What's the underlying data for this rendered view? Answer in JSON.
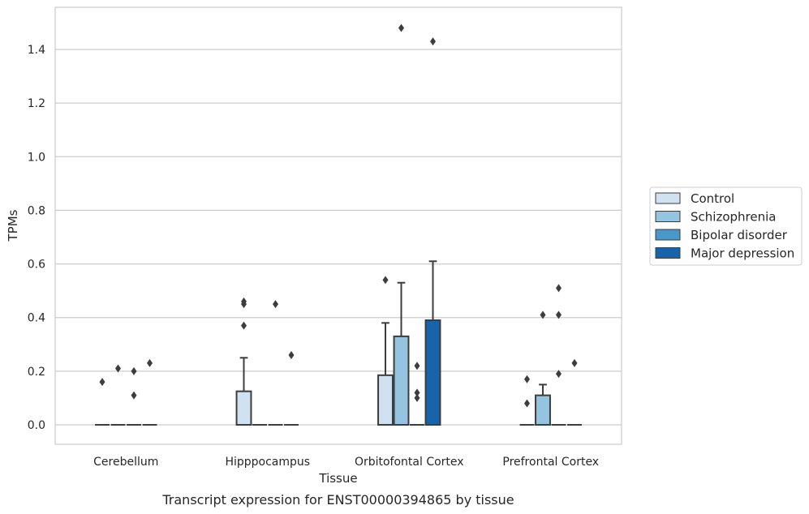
{
  "chart_data": {
    "type": "box",
    "title": "",
    "caption": "Transcript expression for ENST00000394865 by tissue",
    "xlabel": "Tissue",
    "ylabel": "TPMs",
    "ylim": [
      -0.07,
      1.56
    ],
    "yticks": [
      "0.0",
      "0.2",
      "0.4",
      "0.6",
      "0.8",
      "1.0",
      "1.2",
      "1.4"
    ],
    "grid": "horizontal",
    "legend_position": "right",
    "categories": [
      "Cerebellum",
      "Hipppocampus",
      "Orbitofontal Cortex",
      "Prefrontal Cortex"
    ],
    "series": [
      {
        "name": "Control",
        "color": "#d0e1f2",
        "boxes": [
          {
            "category": "Cerebellum",
            "q1": 0,
            "median": 0,
            "q3": 0,
            "whisker_low": 0,
            "whisker_high": 0,
            "outliers": [
              0.16
            ]
          },
          {
            "category": "Hipppocampus",
            "q1": 0,
            "median": 0,
            "q3": 0.125,
            "whisker_low": 0,
            "whisker_high": 0.25,
            "outliers": [
              0.37,
              0.45,
              0.46
            ]
          },
          {
            "category": "Orbitofontal Cortex",
            "q1": 0,
            "median": 0,
            "q3": 0.185,
            "whisker_low": 0,
            "whisker_high": 0.38,
            "outliers": [
              0.54
            ]
          },
          {
            "category": "Prefrontal Cortex",
            "q1": 0,
            "median": 0,
            "q3": 0,
            "whisker_low": 0,
            "whisker_high": 0,
            "outliers": [
              0.08,
              0.17
            ]
          }
        ]
      },
      {
        "name": "Schizophrenia",
        "color": "#94c4df",
        "boxes": [
          {
            "category": "Cerebellum",
            "q1": 0,
            "median": 0,
            "q3": 0,
            "whisker_low": 0,
            "whisker_high": 0,
            "outliers": [
              0.21
            ]
          },
          {
            "category": "Hipppocampus",
            "q1": 0,
            "median": 0,
            "q3": 0,
            "whisker_low": 0,
            "whisker_high": 0,
            "outliers": []
          },
          {
            "category": "Orbitofontal Cortex",
            "q1": 0,
            "median": 0,
            "q3": 0.33,
            "whisker_low": 0,
            "whisker_high": 0.53,
            "outliers": [
              1.48
            ]
          },
          {
            "category": "Prefrontal Cortex",
            "q1": 0,
            "median": 0,
            "q3": 0.11,
            "whisker_low": 0,
            "whisker_high": 0.15,
            "outliers": [
              0.41
            ]
          }
        ]
      },
      {
        "name": "Bipolar disorder",
        "color": "#4a98c9",
        "boxes": [
          {
            "category": "Cerebellum",
            "q1": 0,
            "median": 0,
            "q3": 0,
            "whisker_low": 0,
            "whisker_high": 0,
            "outliers": [
              0.11,
              0.2
            ]
          },
          {
            "category": "Hipppocampus",
            "q1": 0,
            "median": 0,
            "q3": 0,
            "whisker_low": 0,
            "whisker_high": 0,
            "outliers": [
              0.45
            ]
          },
          {
            "category": "Orbitofontal Cortex",
            "q1": 0,
            "median": 0,
            "q3": 0,
            "whisker_low": 0,
            "whisker_high": 0,
            "outliers": [
              0.1,
              0.12,
              0.22
            ]
          },
          {
            "category": "Prefrontal Cortex",
            "q1": 0,
            "median": 0,
            "q3": 0,
            "whisker_low": 0,
            "whisker_high": 0,
            "outliers": [
              0.19,
              0.41,
              0.51
            ]
          }
        ]
      },
      {
        "name": "Major depression",
        "color": "#1764ab",
        "boxes": [
          {
            "category": "Cerebellum",
            "q1": 0,
            "median": 0,
            "q3": 0,
            "whisker_low": 0,
            "whisker_high": 0,
            "outliers": [
              0.23
            ]
          },
          {
            "category": "Hipppocampus",
            "q1": 0,
            "median": 0,
            "q3": 0,
            "whisker_low": 0,
            "whisker_high": 0,
            "outliers": [
              0.26
            ]
          },
          {
            "category": "Orbitofontal Cortex",
            "q1": 0,
            "median": 0,
            "q3": 0.39,
            "whisker_low": 0,
            "whisker_high": 0.61,
            "outliers": [
              1.43
            ]
          },
          {
            "category": "Prefrontal Cortex",
            "q1": 0,
            "median": 0,
            "q3": 0,
            "whisker_low": 0,
            "whisker_high": 0,
            "outliers": [
              0.23
            ]
          }
        ]
      }
    ]
  }
}
